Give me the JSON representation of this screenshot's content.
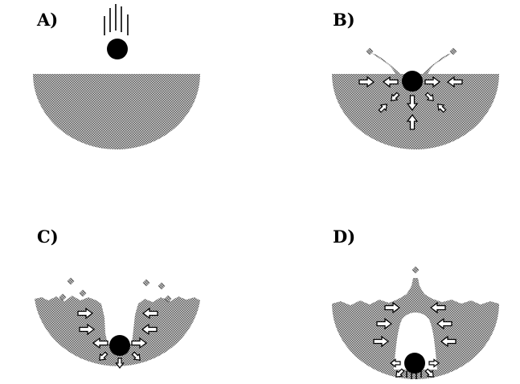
{
  "panels": [
    {
      "id": "A",
      "label": "A)"
    },
    {
      "id": "B",
      "label": "B)"
    },
    {
      "id": "C",
      "label": "C)"
    },
    {
      "id": "D",
      "label": "D)"
    }
  ],
  "colors": {
    "background": "#ffffff",
    "liquid_dither_dark": "#6a6a6a",
    "liquid_dither_light": "#d9d9d9",
    "ball": "#000000",
    "arrow_fill": "#ffffff",
    "arrow_stroke": "#000000"
  }
}
